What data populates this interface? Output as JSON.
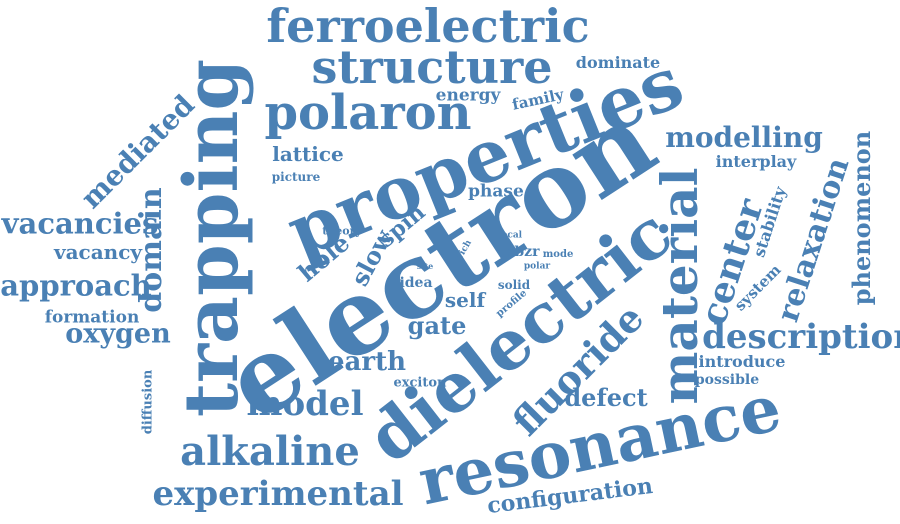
{
  "color": "#4a80b4",
  "words": [
    "electron",
    "properties",
    "trapping",
    "dielectric",
    "resonance",
    "ferroelectric",
    "structure",
    "polaron",
    "material",
    "fluoride",
    "alkaline",
    "experimental",
    "description",
    "model",
    "center",
    "vacancies",
    "approach",
    "domain",
    "oxygen",
    "mediated",
    "relaxation",
    "phenomenon",
    "modelling",
    "earth",
    "gate",
    "hole",
    "slow",
    "spin",
    "defect",
    "configuration",
    "vacancy",
    "formation",
    "lattice",
    "phase",
    "self",
    "dominate",
    "energy",
    "family",
    "interplay",
    "stability",
    "system",
    "introduce",
    "possible",
    "picture",
    "theory",
    "idea",
    "exciton",
    "diffusion",
    "local",
    "rich",
    "pbzr",
    "mode",
    "polar",
    "solid",
    "profile",
    "site"
  ]
}
